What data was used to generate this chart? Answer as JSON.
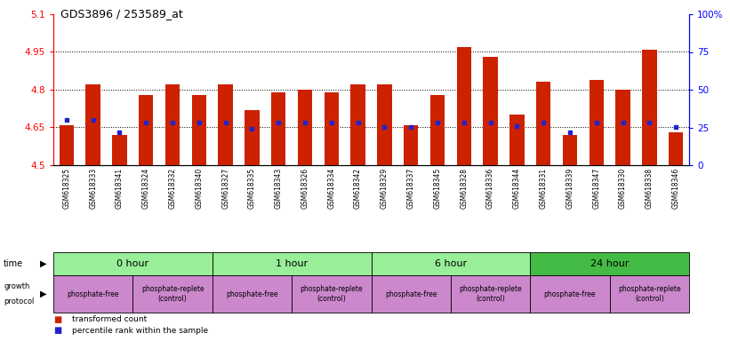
{
  "title": "GDS3896 / 253589_at",
  "samples": [
    "GSM618325",
    "GSM618333",
    "GSM618341",
    "GSM618324",
    "GSM618332",
    "GSM618340",
    "GSM618327",
    "GSM618335",
    "GSM618343",
    "GSM618326",
    "GSM618334",
    "GSM618342",
    "GSM618329",
    "GSM618337",
    "GSM618345",
    "GSM618328",
    "GSM618336",
    "GSM618344",
    "GSM618331",
    "GSM618339",
    "GSM618347",
    "GSM618330",
    "GSM618338",
    "GSM618346"
  ],
  "bar_values": [
    4.66,
    4.82,
    4.62,
    4.78,
    4.82,
    4.78,
    4.82,
    4.72,
    4.79,
    4.8,
    4.79,
    4.82,
    4.82,
    4.66,
    4.78,
    4.97,
    4.93,
    4.7,
    4.83,
    4.62,
    4.84,
    4.8,
    4.96,
    4.63
  ],
  "percentile_rank": [
    30,
    30,
    22,
    28,
    28,
    28,
    28,
    24,
    28,
    28,
    28,
    28,
    25,
    25,
    28,
    28,
    28,
    26,
    28,
    22,
    28,
    28,
    28,
    25
  ],
  "ymin": 4.5,
  "ymax": 5.1,
  "yticks": [
    4.5,
    4.65,
    4.8,
    4.95,
    5.1
  ],
  "ytick_labels": [
    "4.5",
    "4.65",
    "4.8",
    "4.95",
    "5.1"
  ],
  "y2ticks": [
    0,
    25,
    50,
    75,
    100
  ],
  "y2tick_labels": [
    "0",
    "25",
    "50",
    "75",
    "100%"
  ],
  "bar_color": "#cc2200",
  "percentile_color": "#2222cc",
  "bg_color": "#ffffff",
  "grid_lines": [
    4.65,
    4.8,
    4.95
  ],
  "time_groups": [
    {
      "label": "0 hour",
      "start": 0,
      "end": 6,
      "color": "#99ee99"
    },
    {
      "label": "1 hour",
      "start": 6,
      "end": 12,
      "color": "#99ee99"
    },
    {
      "label": "6 hour",
      "start": 12,
      "end": 18,
      "color": "#99ee99"
    },
    {
      "label": "24 hour",
      "start": 18,
      "end": 24,
      "color": "#44bb44"
    }
  ],
  "protocol_groups": [
    {
      "label": "phosphate-free",
      "start": 0,
      "end": 3,
      "color": "#cc88cc"
    },
    {
      "label": "phosphate-replete\n(control)",
      "start": 3,
      "end": 6,
      "color": "#cc88cc"
    },
    {
      "label": "phosphate-free",
      "start": 6,
      "end": 9,
      "color": "#cc88cc"
    },
    {
      "label": "phosphate-replete\n(control)",
      "start": 9,
      "end": 12,
      "color": "#cc88cc"
    },
    {
      "label": "phosphate-free",
      "start": 12,
      "end": 15,
      "color": "#cc88cc"
    },
    {
      "label": "phosphate-replete\n(control)",
      "start": 15,
      "end": 18,
      "color": "#cc88cc"
    },
    {
      "label": "phosphate-free",
      "start": 18,
      "end": 21,
      "color": "#cc88cc"
    },
    {
      "label": "phosphate-replete\n(control)",
      "start": 21,
      "end": 24,
      "color": "#cc88cc"
    }
  ]
}
